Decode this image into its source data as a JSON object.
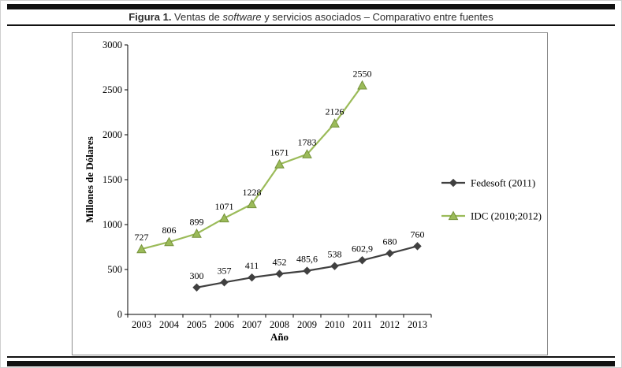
{
  "figure": {
    "caption": {
      "prefix": "Figura 1.",
      "part1": " Ventas de ",
      "italic": "software",
      "part2": " y servicios asociados – Comparativo entre fuentes"
    }
  },
  "chart_data": {
    "type": "line",
    "title": "Figura 1. Ventas de software y servicios asociados – Comparativo entre fuentes",
    "xlabel": "Año",
    "ylabel": "Millones de Dólares",
    "ylim": [
      0,
      3000
    ],
    "yticks": [
      0,
      500,
      1000,
      1500,
      2000,
      2500,
      3000
    ],
    "categories": [
      2003,
      2004,
      2005,
      2006,
      2007,
      2008,
      2009,
      2010,
      2011,
      2012,
      2013
    ],
    "grid": false,
    "legend_position": "right",
    "series": [
      {
        "name": "Fedesoft (2011)",
        "color": "#404040",
        "edge_color": "#404040",
        "marker": "diamond",
        "points": [
          {
            "x": 2005,
            "y": 300,
            "label": "300"
          },
          {
            "x": 2006,
            "y": 357,
            "label": "357"
          },
          {
            "x": 2007,
            "y": 411,
            "label": "411"
          },
          {
            "x": 2008,
            "y": 452,
            "label": "452"
          },
          {
            "x": 2009,
            "y": 485.6,
            "label": "485,6"
          },
          {
            "x": 2010,
            "y": 538,
            "label": "538"
          },
          {
            "x": 2011,
            "y": 602.9,
            "label": "602,9"
          },
          {
            "x": 2012,
            "y": 680,
            "label": "680"
          },
          {
            "x": 2013,
            "y": 760,
            "label": "760"
          }
        ]
      },
      {
        "name": "IDC (2010;2012)",
        "color": "#9bbb59",
        "edge_color": "#76923c",
        "marker": "triangle",
        "points": [
          {
            "x": 2003,
            "y": 727,
            "label": "727"
          },
          {
            "x": 2004,
            "y": 806,
            "label": "806"
          },
          {
            "x": 2005,
            "y": 899,
            "label": "899"
          },
          {
            "x": 2006,
            "y": 1071,
            "label": "1071"
          },
          {
            "x": 2007,
            "y": 1228,
            "label": "1228"
          },
          {
            "x": 2008,
            "y": 1671,
            "label": "1671"
          },
          {
            "x": 2009,
            "y": 1783,
            "label": "1783"
          },
          {
            "x": 2010,
            "y": 2126,
            "label": "2126"
          },
          {
            "x": 2011,
            "y": 2550,
            "label": "2550"
          }
        ]
      }
    ]
  }
}
